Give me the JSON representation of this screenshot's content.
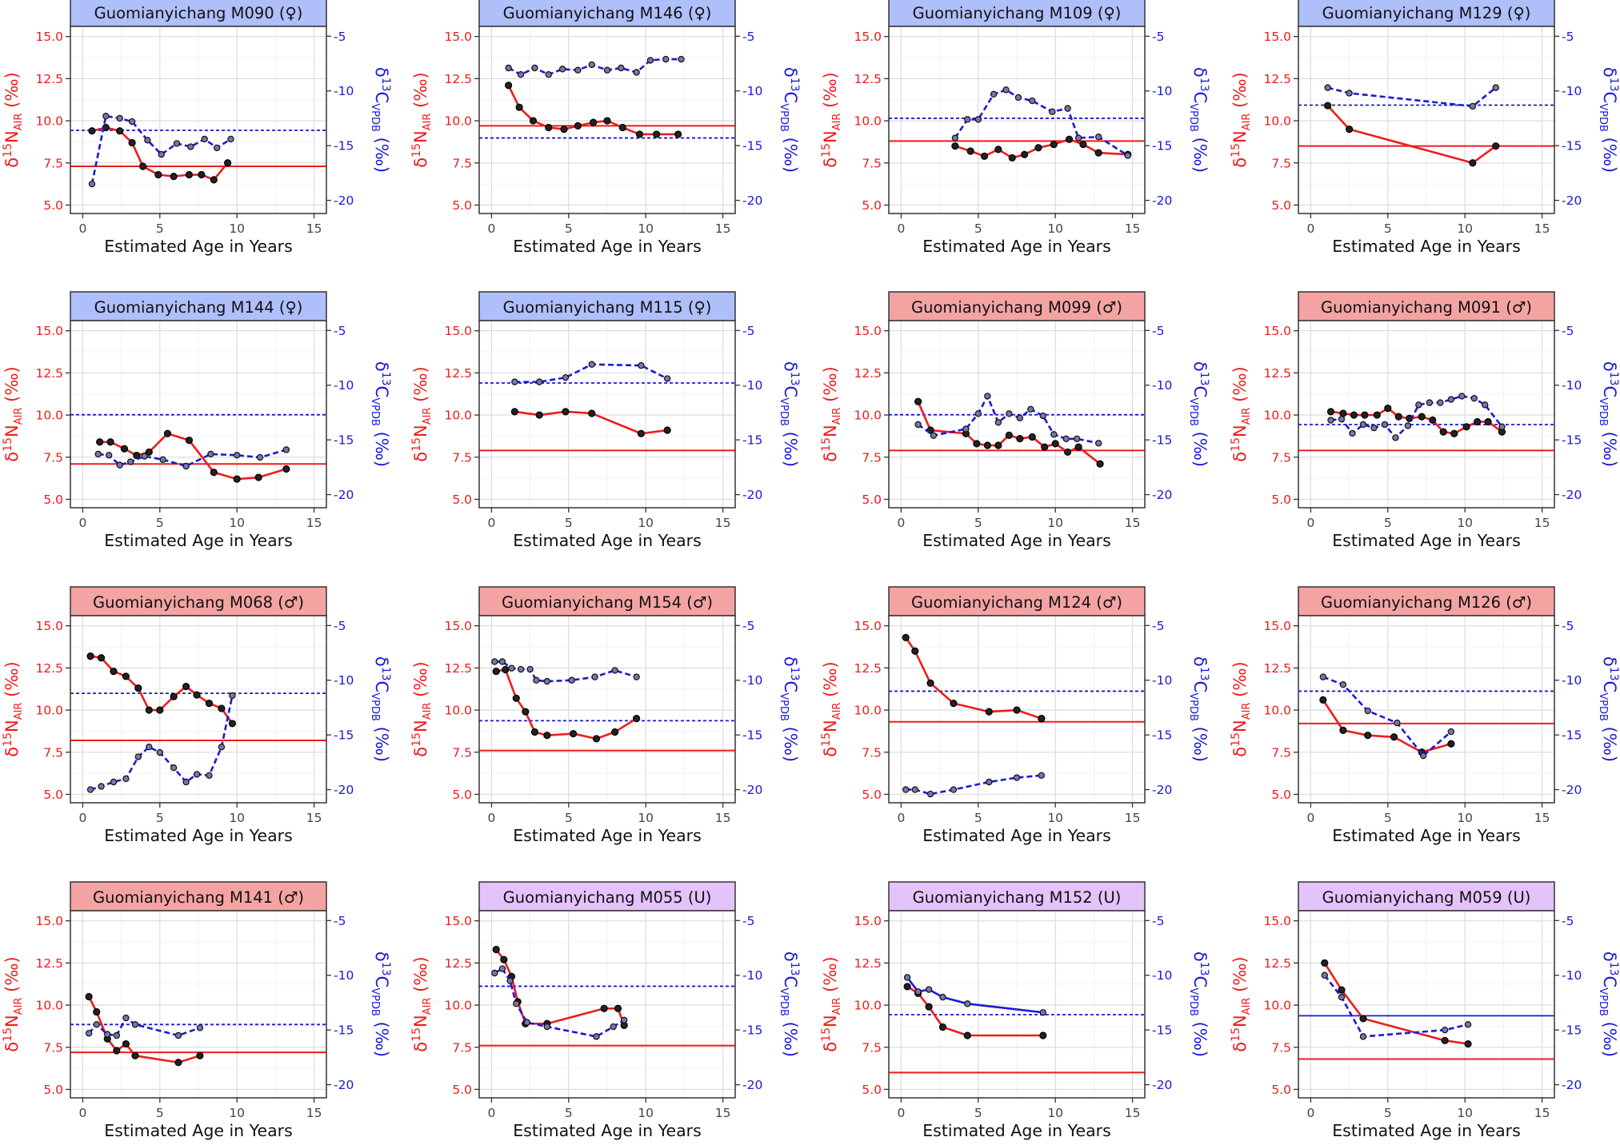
{
  "figure": {
    "shared_x_axis": {
      "label": "Estimated Age in Years",
      "ticks": [
        0,
        5,
        10,
        15
      ],
      "range": [
        -0.8,
        15.8
      ]
    },
    "left_axis": {
      "prefix": "δ",
      "iso_sup": "15",
      "element": "N",
      "sub": "AIR",
      "unit": "(‰)",
      "ticks": [
        "5.0",
        "7.5",
        "10.0",
        "12.5",
        "15.0"
      ],
      "range": [
        4.5,
        15.6
      ],
      "color": "#ee1c1c"
    },
    "right_axis": {
      "prefix": "δ",
      "iso_sup": "13",
      "element": "C",
      "sub": "VPDB",
      "unit": "(‰)",
      "ticks": [
        -20,
        -15,
        -10,
        -5
      ],
      "range": [
        -21.2,
        -4.1
      ],
      "color": "#1a1ad6"
    },
    "strip_colors": {
      "female": "#afbffa",
      "male": "#f4a3a3",
      "unknown": "#e3c3fa"
    },
    "colors": {
      "nitrogen": "#ee1c1c",
      "carbon": "#1a1ad6",
      "point_fill": "#222222",
      "carbon_point_fill": "#7777aa"
    }
  },
  "chart_data": [
    {
      "type": "line",
      "title": "Guomianyichang M090 (♀)",
      "sex": "female",
      "series": [
        {
          "name": "δ15N",
          "axis": "left",
          "style": "solid",
          "x": [
            0.6,
            1.5,
            2.4,
            3.2,
            3.9,
            4.9,
            5.9,
            6.9,
            7.7,
            8.5,
            9.4
          ],
          "y": [
            9.4,
            9.6,
            9.4,
            8.7,
            7.3,
            6.8,
            6.7,
            6.8,
            6.8,
            6.5,
            7.5
          ]
        },
        {
          "name": "δ13C",
          "axis": "right",
          "style": "dashed",
          "x": [
            0.6,
            1.5,
            2.4,
            3.2,
            4.2,
            5.1,
            6.1,
            7.0,
            7.9,
            8.7,
            9.6
          ],
          "y": [
            -18.5,
            -12.3,
            -12.5,
            -12.8,
            -14.5,
            -15.8,
            -14.8,
            -15.1,
            -14.4,
            -15.2,
            -14.4
          ]
        }
      ],
      "n_mean": 7.3,
      "c_mean": -13.6
    },
    {
      "type": "line",
      "title": "Guomianyichang M146 (♀)",
      "sex": "female",
      "series": [
        {
          "name": "δ15N",
          "axis": "left",
          "style": "solid",
          "x": [
            1.1,
            1.8,
            2.7,
            3.7,
            4.7,
            5.6,
            6.6,
            7.5,
            8.5,
            9.6,
            10.7,
            12.1
          ],
          "y": [
            12.1,
            10.8,
            10.0,
            9.6,
            9.5,
            9.7,
            9.9,
            10.0,
            9.6,
            9.2,
            9.2,
            9.2
          ]
        },
        {
          "name": "δ13C",
          "axis": "right",
          "style": "dashed",
          "x": [
            1.1,
            1.9,
            2.8,
            3.7,
            4.6,
            5.6,
            6.5,
            7.5,
            8.4,
            9.4,
            10.3,
            11.3,
            12.3
          ],
          "y": [
            -7.9,
            -8.5,
            -7.9,
            -8.5,
            -8.0,
            -8.1,
            -7.6,
            -8.1,
            -7.9,
            -8.3,
            -7.2,
            -7.1,
            -7.1
          ]
        }
      ],
      "n_mean": 9.7,
      "c_mean": -14.3
    },
    {
      "type": "line",
      "title": "Guomianyichang M109 (♀)",
      "sex": "female",
      "series": [
        {
          "name": "δ15N",
          "axis": "left",
          "style": "solid",
          "x": [
            3.5,
            4.5,
            5.4,
            6.3,
            7.2,
            8.0,
            8.9,
            9.9,
            10.9,
            11.8,
            12.8,
            14.7
          ],
          "y": [
            8.5,
            8.2,
            7.9,
            8.3,
            7.8,
            8.0,
            8.4,
            8.6,
            8.9,
            8.6,
            8.1,
            8.0
          ]
        },
        {
          "name": "δ13C",
          "axis": "right",
          "style": "dashed",
          "x": [
            3.5,
            4.3,
            5.0,
            6.0,
            6.8,
            7.6,
            8.5,
            9.8,
            10.8,
            11.5,
            12.8,
            14.7
          ],
          "y": [
            -14.3,
            -12.6,
            -12.6,
            -10.3,
            -9.9,
            -10.6,
            -10.9,
            -11.9,
            -11.6,
            -14.3,
            -14.2,
            -15.9
          ]
        }
      ],
      "n_mean": 8.8,
      "c_mean": -12.5
    },
    {
      "type": "line",
      "title": "Guomianyichang M129 (♀)",
      "sex": "female",
      "series": [
        {
          "name": "δ15N",
          "axis": "left",
          "style": "solid",
          "x": [
            1.1,
            2.5,
            10.5,
            12.0
          ],
          "y": [
            10.9,
            9.5,
            7.5,
            8.5
          ]
        },
        {
          "name": "δ13C",
          "axis": "right",
          "style": "dashed",
          "x": [
            1.1,
            2.5,
            10.5,
            12.0
          ],
          "y": [
            -9.7,
            -10.2,
            -11.4,
            -9.7
          ]
        }
      ],
      "n_mean": 8.5,
      "c_mean": -11.3
    },
    {
      "type": "line",
      "title": "Guomianyichang M144 (♀)",
      "sex": "female",
      "series": [
        {
          "name": "δ15N",
          "axis": "left",
          "style": "solid",
          "x": [
            1.1,
            1.8,
            2.7,
            3.5,
            4.3,
            5.5,
            6.9,
            8.5,
            10.0,
            11.4,
            13.2
          ],
          "y": [
            8.4,
            8.4,
            8.0,
            7.6,
            7.8,
            8.9,
            8.5,
            6.6,
            6.2,
            6.3,
            6.8
          ]
        },
        {
          "name": "δ13C",
          "axis": "right",
          "style": "dashed",
          "x": [
            1.0,
            1.7,
            2.4,
            3.1,
            4.0,
            5.2,
            6.7,
            8.3,
            10.0,
            11.5,
            13.2
          ],
          "y": [
            -16.3,
            -16.4,
            -17.3,
            -17.0,
            -16.5,
            -16.8,
            -17.4,
            -16.3,
            -16.4,
            -16.6,
            -15.9
          ]
        }
      ],
      "n_mean": 7.1,
      "c_mean": -12.7
    },
    {
      "type": "line",
      "title": "Guomianyichang M115 (♀)",
      "sex": "female",
      "series": [
        {
          "name": "δ15N",
          "axis": "left",
          "style": "solid",
          "x": [
            1.5,
            3.1,
            4.8,
            6.5,
            9.7,
            11.4
          ],
          "y": [
            10.2,
            10.0,
            10.2,
            10.1,
            8.9,
            9.1
          ]
        },
        {
          "name": "δ13C",
          "axis": "right",
          "style": "dashed",
          "x": [
            1.5,
            3.1,
            4.8,
            6.5,
            9.7,
            11.4
          ],
          "y": [
            -9.7,
            -9.7,
            -9.3,
            -8.1,
            -8.2,
            -9.4
          ]
        }
      ],
      "n_mean": 7.9,
      "c_mean": -9.8
    },
    {
      "type": "line",
      "title": "Guomianyichang M099 (♂)",
      "sex": "male",
      "series": [
        {
          "name": "δ15N",
          "axis": "left",
          "style": "solid",
          "x": [
            1.1,
            1.9,
            4.2,
            4.9,
            5.6,
            6.3,
            7.0,
            7.7,
            8.5,
            9.3,
            10.0,
            10.8,
            11.5,
            12.9
          ],
          "y": [
            10.8,
            9.1,
            8.9,
            8.3,
            8.2,
            8.2,
            8.8,
            8.6,
            8.7,
            8.1,
            8.3,
            7.8,
            8.1,
            7.1
          ]
        },
        {
          "name": "δ13C",
          "axis": "right",
          "style": "dashed",
          "x": [
            1.1,
            2.1,
            4.2,
            5.0,
            5.6,
            6.3,
            7.0,
            7.7,
            8.4,
            9.2,
            9.9,
            10.7,
            11.4,
            12.8
          ],
          "y": [
            -13.6,
            -14.6,
            -14.0,
            -12.6,
            -11.0,
            -13.4,
            -12.6,
            -13.0,
            -12.2,
            -12.8,
            -14.5,
            -14.9,
            -14.9,
            -15.3
          ]
        }
      ],
      "n_mean": 7.9,
      "c_mean": -12.7
    },
    {
      "type": "line",
      "title": "Guomianyichang M091 (♂)",
      "sex": "male",
      "series": [
        {
          "name": "δ15N",
          "axis": "left",
          "style": "solid",
          "x": [
            1.3,
            2.1,
            2.8,
            3.5,
            4.3,
            5.0,
            5.7,
            6.4,
            7.2,
            7.9,
            8.6,
            9.3,
            10.1,
            10.8,
            11.5,
            12.4
          ],
          "y": [
            10.2,
            10.1,
            10.0,
            10.0,
            10.0,
            10.4,
            9.9,
            9.8,
            9.9,
            9.7,
            9.0,
            8.9,
            9.3,
            9.6,
            9.6,
            9.0
          ]
        },
        {
          "name": "δ13C",
          "axis": "right",
          "style": "dashed",
          "x": [
            1.3,
            2.0,
            2.7,
            3.4,
            4.1,
            4.8,
            5.5,
            6.3,
            7.0,
            7.7,
            8.4,
            9.1,
            9.8,
            10.6,
            11.3,
            12.4
          ],
          "y": [
            -13.2,
            -13.1,
            -14.4,
            -13.6,
            -13.9,
            -13.6,
            -14.8,
            -13.7,
            -11.8,
            -11.6,
            -11.6,
            -11.3,
            -11.0,
            -11.2,
            -11.8,
            -13.8
          ]
        }
      ],
      "n_mean": 7.9,
      "c_mean": -13.6
    },
    {
      "type": "line",
      "title": "Guomianyichang M068 (♂)",
      "sex": "male",
      "series": [
        {
          "name": "δ15N",
          "axis": "left",
          "style": "solid",
          "x": [
            0.5,
            1.2,
            2.0,
            2.8,
            3.6,
            4.3,
            5.0,
            5.9,
            6.7,
            7.4,
            8.2,
            9.0,
            9.7
          ],
          "y": [
            13.2,
            13.1,
            12.3,
            12.0,
            11.3,
            10.0,
            10.0,
            10.8,
            11.4,
            10.9,
            10.4,
            10.1,
            9.2
          ]
        },
        {
          "name": "δ13C",
          "axis": "right",
          "style": "dashed",
          "x": [
            0.5,
            1.2,
            2.0,
            2.8,
            3.6,
            4.3,
            5.0,
            5.9,
            6.7,
            7.4,
            8.2,
            9.0,
            9.7
          ],
          "y": [
            -20.0,
            -19.7,
            -19.3,
            -19.0,
            -17.0,
            -16.1,
            -16.6,
            -18.0,
            -19.3,
            -18.6,
            -18.7,
            -16.1,
            -11.4
          ]
        }
      ],
      "n_mean": 8.2,
      "c_mean": -11.2
    },
    {
      "type": "line",
      "title": "Guomianyichang M154 (♂)",
      "sex": "male",
      "series": [
        {
          "name": "δ15N",
          "axis": "left",
          "style": "solid",
          "x": [
            0.3,
            0.9,
            1.6,
            2.2,
            2.8,
            3.6,
            5.3,
            6.8,
            8.0,
            9.4
          ],
          "y": [
            12.3,
            12.4,
            10.7,
            9.9,
            8.7,
            8.5,
            8.6,
            8.3,
            8.7,
            9.5
          ]
        },
        {
          "name": "δ13C",
          "axis": "right",
          "style": "dashed",
          "x": [
            0.2,
            0.7,
            1.3,
            1.9,
            2.5,
            2.9,
            3.6,
            5.2,
            6.7,
            8.0,
            9.4
          ],
          "y": [
            -8.3,
            -8.3,
            -8.9,
            -9.0,
            -9.0,
            -10.0,
            -10.1,
            -10.0,
            -9.7,
            -9.1,
            -9.7
          ]
        }
      ],
      "n_mean": 7.6,
      "c_mean": -13.7
    },
    {
      "type": "line",
      "title": "Guomianyichang M124 (♂)",
      "sex": "male",
      "series": [
        {
          "name": "δ15N",
          "axis": "left",
          "style": "solid",
          "x": [
            0.3,
            0.9,
            1.9,
            3.4,
            5.7,
            7.5,
            9.1
          ],
          "y": [
            14.3,
            13.5,
            11.6,
            10.4,
            9.9,
            10.0,
            9.5
          ]
        },
        {
          "name": "δ13C",
          "axis": "right",
          "style": "dashed",
          "x": [
            0.3,
            0.9,
            1.9,
            3.4,
            5.7,
            7.5,
            9.1
          ],
          "y": [
            -20.0,
            -20.0,
            -20.4,
            -20.0,
            -19.3,
            -18.9,
            -18.7
          ]
        }
      ],
      "n_mean": 9.3,
      "c_mean": -11.0
    },
    {
      "type": "line",
      "title": "Guomianyichang M126 (♂)",
      "sex": "male",
      "series": [
        {
          "name": "δ15N",
          "axis": "left",
          "style": "solid",
          "x": [
            0.8,
            2.1,
            3.7,
            5.4,
            7.2,
            9.1
          ],
          "y": [
            10.6,
            8.8,
            8.5,
            8.4,
            7.5,
            8.0
          ]
        },
        {
          "name": "δ13C",
          "axis": "right",
          "style": "dashed",
          "x": [
            0.8,
            2.1,
            3.7,
            5.6,
            7.3,
            9.1
          ],
          "y": [
            -9.7,
            -10.4,
            -12.8,
            -13.9,
            -16.9,
            -14.7
          ]
        }
      ],
      "n_mean": 9.2,
      "c_mean": -11.0
    },
    {
      "type": "line",
      "title": "Guomianyichang M141 (♂)",
      "sex": "male",
      "series": [
        {
          "name": "δ15N",
          "axis": "left",
          "style": "solid",
          "x": [
            0.4,
            0.9,
            1.6,
            2.2,
            2.8,
            3.4,
            6.2,
            7.6
          ],
          "y": [
            10.5,
            9.6,
            8.0,
            7.3,
            7.7,
            7.0,
            6.6,
            7.0
          ]
        },
        {
          "name": "δ13C",
          "axis": "right",
          "style": "dashed",
          "x": [
            0.4,
            0.9,
            1.6,
            2.2,
            2.8,
            3.4,
            6.2,
            7.6
          ],
          "y": [
            -15.3,
            -14.5,
            -15.4,
            -15.5,
            -13.9,
            -14.5,
            -15.5,
            -14.8
          ]
        }
      ],
      "n_mean": 7.2,
      "c_mean": -14.5
    },
    {
      "type": "line",
      "title": "Guomianyichang M055 (U)",
      "sex": "unknown",
      "series": [
        {
          "name": "δ15N",
          "axis": "left",
          "style": "solid",
          "x": [
            0.3,
            0.8,
            1.3,
            1.7,
            2.2,
            3.6,
            7.3,
            8.2,
            8.6
          ],
          "y": [
            13.3,
            12.7,
            11.7,
            10.2,
            8.9,
            8.9,
            9.8,
            9.8,
            8.8
          ]
        },
        {
          "name": "δ13C",
          "axis": "right",
          "style": "dashed",
          "x": [
            0.2,
            0.7,
            1.2,
            1.6,
            2.3,
            3.6,
            6.8,
            7.9,
            8.6
          ],
          "y": [
            -9.8,
            -9.4,
            -10.5,
            -12.6,
            -14.3,
            -14.7,
            -15.6,
            -14.7,
            -14.1
          ]
        }
      ],
      "n_mean": 7.6,
      "c_mean": -11.0
    },
    {
      "type": "line",
      "title": "Guomianyichang M152 (U)",
      "sex": "unknown",
      "series": [
        {
          "name": "δ15N",
          "axis": "left",
          "style": "solid",
          "x": [
            0.4,
            1.1,
            1.8,
            2.7,
            4.3,
            9.2
          ],
          "y": [
            11.1,
            10.7,
            9.9,
            8.7,
            8.2,
            8.2
          ]
        },
        {
          "name": "δ13C",
          "axis": "right",
          "style": "solid",
          "x": [
            0.4,
            1.1,
            1.8,
            2.7,
            4.3,
            9.2
          ],
          "y": [
            -10.2,
            -11.5,
            -11.3,
            -12.0,
            -12.6,
            -13.4
          ]
        }
      ],
      "n_mean": 6.0,
      "c_mean": -13.6
    },
    {
      "type": "line",
      "title": "Guomianyichang M059 (U)",
      "sex": "unknown",
      "series": [
        {
          "name": "δ15N",
          "axis": "left",
          "style": "solid",
          "x": [
            0.9,
            2.0,
            3.4,
            8.7,
            10.2
          ],
          "y": [
            12.5,
            10.9,
            9.2,
            7.9,
            7.7
          ]
        },
        {
          "name": "δ13C",
          "axis": "right",
          "style": "dashed",
          "x": [
            0.9,
            2.0,
            3.4,
            8.7,
            10.2
          ],
          "y": [
            -10.0,
            -12.0,
            -15.6,
            -15.0,
            -14.5
          ]
        }
      ],
      "n_mean": 6.8,
      "c_mean": -13.7,
      "c_mean_style": "solid"
    }
  ]
}
